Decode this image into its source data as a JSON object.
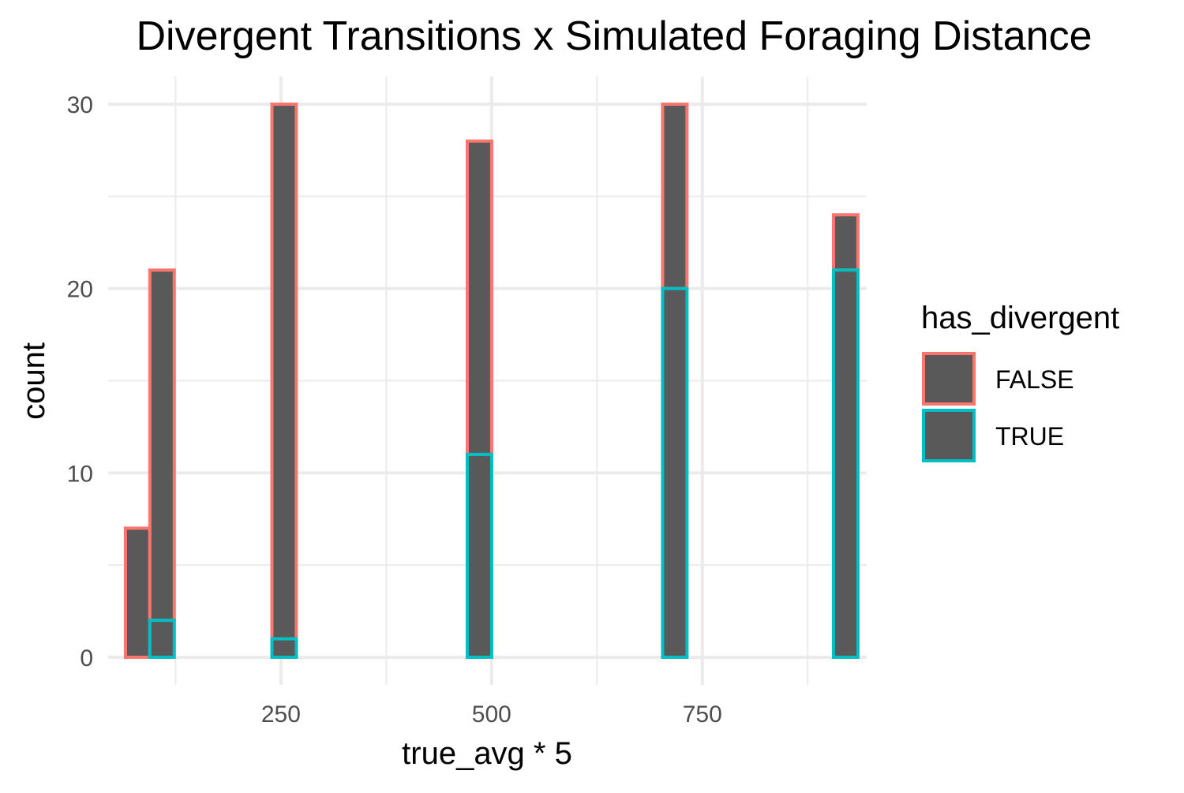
{
  "chart_data": {
    "type": "bar",
    "subtype": "stacked-histogram",
    "title": "Divergent Transitions x Simulated Foraging Distance",
    "xlabel": "true_avg * 5",
    "ylabel": "count",
    "xlim": [
      45,
      945
    ],
    "ylim": [
      -1.5,
      31.5
    ],
    "x_ticks": [
      250,
      500,
      750
    ],
    "x_tick_labels": [
      "250",
      "500",
      "750"
    ],
    "x_minor_ticks": [
      125,
      375,
      625,
      875
    ],
    "y_ticks": [
      0,
      10,
      20,
      30
    ],
    "y_tick_labels": [
      "0",
      "10",
      "20",
      "30"
    ],
    "y_minor_ticks": [
      5,
      15,
      25
    ],
    "x_range": [
      80,
      920
    ],
    "bin_width": 28.97,
    "bar_fill": "#595959",
    "grid": true,
    "legend": {
      "title": "has_divergent",
      "position": "right",
      "fill": "#595959"
    },
    "series": [
      {
        "name": "FALSE",
        "color": "#F8766D",
        "values": [
          7,
          19,
          0,
          0,
          0,
          0,
          29,
          0,
          0,
          0,
          0,
          0,
          0,
          0,
          17,
          0,
          0,
          0,
          0,
          0,
          0,
          0,
          10,
          0,
          0,
          0,
          0,
          0,
          0,
          3
        ]
      },
      {
        "name": "TRUE",
        "color": "#00BFC4",
        "values": [
          0,
          2,
          0,
          0,
          0,
          0,
          1,
          0,
          0,
          0,
          0,
          0,
          0,
          0,
          11,
          0,
          0,
          0,
          0,
          0,
          0,
          0,
          20,
          0,
          0,
          0,
          0,
          0,
          0,
          21
        ]
      }
    ]
  }
}
